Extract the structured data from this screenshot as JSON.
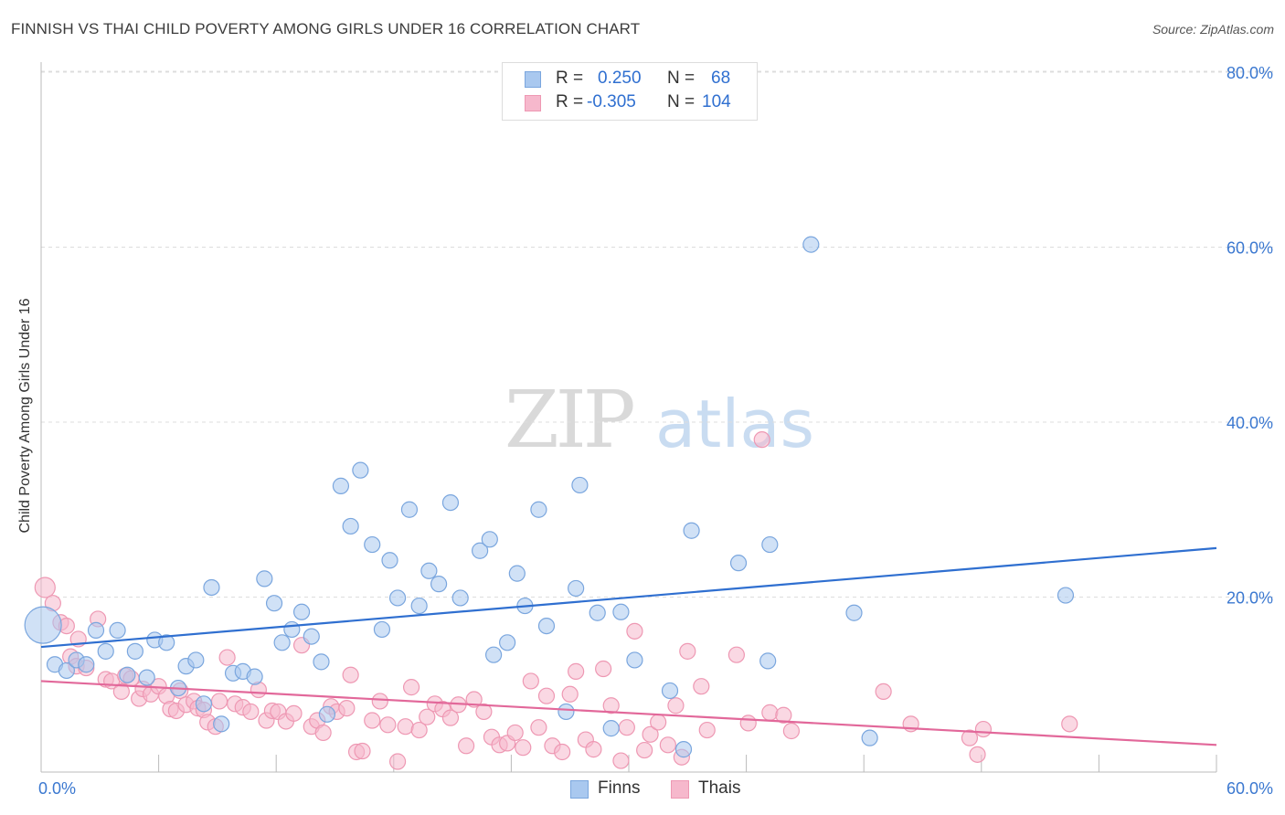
{
  "header": {
    "title": "FINNISH VS THAI CHILD POVERTY AMONG GIRLS UNDER 16 CORRELATION CHART",
    "source": "Source: ZipAtlas.com"
  },
  "legend": {
    "finns": {
      "r_label": "R =",
      "r_value": "0.250",
      "n_label": "N =",
      "n_value": "68"
    },
    "thais": {
      "r_label": "R =",
      "r_value": "-0.305",
      "n_label": "N =",
      "n_value": "104"
    }
  },
  "series_labels": {
    "finns": "Finns",
    "thais": "Thais"
  },
  "watermark": {
    "zip": "ZIP",
    "atlas": "atlas"
  },
  "colors": {
    "finns_fill": "#a9c8ef",
    "finns_stroke": "#7aa6de",
    "finns_line": "#2f6fd0",
    "thais_fill": "#f6b8cc",
    "thais_stroke": "#ee98b3",
    "thais_line": "#e2689a",
    "tick_label": "#3b78d0",
    "grid": "#dddddd"
  },
  "chart_data": {
    "type": "scatter",
    "title": "FINNISH VS THAI CHILD POVERTY AMONG GIRLS UNDER 16 CORRELATION CHART",
    "xlabel": "",
    "ylabel": "Child Poverty Among Girls Under 16",
    "xlim": [
      0,
      60
    ],
    "ylim": [
      0,
      85
    ],
    "x_ticks": [
      {
        "value": 0,
        "label": "0.0%"
      },
      {
        "value": 60,
        "label": "60.0%"
      }
    ],
    "y_ticks": [
      {
        "value": 20,
        "label": "20.0%"
      },
      {
        "value": 40,
        "label": "40.0%"
      },
      {
        "value": 60,
        "label": "60.0%"
      },
      {
        "value": 80,
        "label": "80.0%"
      }
    ],
    "grid": true,
    "legend_position": "top-center",
    "series": [
      {
        "name": "Finns",
        "r": 0.25,
        "n": 68,
        "trend": {
          "x": [
            0,
            60
          ],
          "y": [
            14.3,
            25.6
          ]
        },
        "points": [
          [
            0.1,
            16.8
          ],
          [
            0.7,
            12.3
          ],
          [
            1.3,
            11.6
          ],
          [
            1.8,
            12.8
          ],
          [
            2.3,
            12.3
          ],
          [
            2.8,
            16.2
          ],
          [
            3.3,
            13.8
          ],
          [
            3.9,
            16.2
          ],
          [
            4.4,
            11.1
          ],
          [
            4.8,
            13.8
          ],
          [
            5.4,
            10.8
          ],
          [
            5.8,
            15.1
          ],
          [
            6.4,
            14.8
          ],
          [
            7.0,
            9.6
          ],
          [
            7.4,
            12.1
          ],
          [
            7.9,
            12.8
          ],
          [
            8.3,
            7.8
          ],
          [
            8.7,
            21.1
          ],
          [
            9.2,
            5.5
          ],
          [
            9.8,
            11.3
          ],
          [
            10.3,
            11.5
          ],
          [
            10.9,
            10.9
          ],
          [
            11.4,
            22.1
          ],
          [
            11.9,
            19.3
          ],
          [
            12.3,
            14.8
          ],
          [
            12.8,
            16.3
          ],
          [
            13.3,
            18.3
          ],
          [
            13.8,
            15.5
          ],
          [
            14.3,
            12.6
          ],
          [
            14.6,
            6.6
          ],
          [
            15.3,
            32.7
          ],
          [
            15.8,
            28.1
          ],
          [
            16.3,
            34.5
          ],
          [
            16.9,
            26.0
          ],
          [
            17.4,
            16.3
          ],
          [
            17.8,
            24.2
          ],
          [
            18.2,
            19.9
          ],
          [
            18.8,
            30.0
          ],
          [
            19.3,
            19.0
          ],
          [
            19.8,
            23.0
          ],
          [
            20.3,
            21.5
          ],
          [
            20.9,
            30.8
          ],
          [
            21.4,
            19.9
          ],
          [
            22.4,
            25.3
          ],
          [
            22.9,
            26.6
          ],
          [
            23.1,
            13.4
          ],
          [
            23.8,
            14.8
          ],
          [
            24.3,
            22.7
          ],
          [
            24.7,
            19.0
          ],
          [
            25.4,
            30.0
          ],
          [
            25.8,
            16.7
          ],
          [
            26.8,
            6.9
          ],
          [
            27.3,
            21.0
          ],
          [
            28.4,
            18.2
          ],
          [
            29.1,
            5.0
          ],
          [
            29.6,
            18.3
          ],
          [
            30.3,
            12.8
          ],
          [
            32.1,
            9.3
          ],
          [
            33.2,
            27.6
          ],
          [
            35.6,
            23.9
          ],
          [
            37.1,
            12.7
          ],
          [
            37.2,
            26.0
          ],
          [
            39.3,
            60.3
          ],
          [
            41.5,
            18.2
          ],
          [
            42.3,
            3.9
          ],
          [
            52.3,
            20.2
          ],
          [
            27.5,
            32.8
          ],
          [
            32.8,
            2.6
          ]
        ]
      },
      {
        "name": "Thais",
        "r": -0.305,
        "n": 104,
        "trend": {
          "x": [
            0,
            60
          ],
          "y": [
            10.4,
            3.1
          ]
        },
        "points": [
          [
            0.2,
            21.1
          ],
          [
            0.6,
            19.3
          ],
          [
            1.0,
            17.1
          ],
          [
            1.3,
            16.7
          ],
          [
            1.5,
            13.2
          ],
          [
            1.8,
            12.1
          ],
          [
            1.9,
            15.2
          ],
          [
            2.3,
            11.9
          ],
          [
            2.9,
            17.5
          ],
          [
            3.3,
            10.6
          ],
          [
            3.6,
            10.4
          ],
          [
            4.1,
            9.2
          ],
          [
            4.3,
            11.0
          ],
          [
            4.6,
            10.7
          ],
          [
            5.0,
            8.4
          ],
          [
            5.2,
            9.5
          ],
          [
            5.6,
            8.9
          ],
          [
            6.0,
            9.8
          ],
          [
            6.4,
            8.7
          ],
          [
            6.6,
            7.2
          ],
          [
            6.9,
            7.0
          ],
          [
            7.1,
            9.3
          ],
          [
            7.4,
            7.7
          ],
          [
            7.8,
            8.1
          ],
          [
            8.0,
            7.3
          ],
          [
            8.3,
            7.1
          ],
          [
            8.5,
            5.7
          ],
          [
            8.9,
            5.2
          ],
          [
            9.1,
            8.1
          ],
          [
            9.5,
            13.1
          ],
          [
            9.9,
            7.8
          ],
          [
            10.3,
            7.4
          ],
          [
            10.7,
            6.9
          ],
          [
            11.1,
            9.4
          ],
          [
            11.5,
            5.9
          ],
          [
            11.8,
            7.0
          ],
          [
            12.1,
            6.9
          ],
          [
            12.5,
            5.8
          ],
          [
            12.9,
            6.7
          ],
          [
            13.3,
            14.5
          ],
          [
            13.8,
            5.2
          ],
          [
            14.1,
            5.9
          ],
          [
            14.4,
            4.5
          ],
          [
            14.8,
            7.5
          ],
          [
            15.1,
            6.9
          ],
          [
            15.6,
            7.3
          ],
          [
            15.8,
            11.1
          ],
          [
            16.1,
            2.3
          ],
          [
            16.4,
            2.4
          ],
          [
            16.9,
            5.9
          ],
          [
            17.3,
            8.1
          ],
          [
            17.7,
            5.4
          ],
          [
            18.2,
            1.2
          ],
          [
            18.6,
            5.2
          ],
          [
            18.9,
            9.7
          ],
          [
            19.3,
            4.8
          ],
          [
            19.7,
            6.3
          ],
          [
            20.1,
            7.8
          ],
          [
            20.5,
            7.2
          ],
          [
            20.9,
            6.2
          ],
          [
            21.3,
            7.7
          ],
          [
            21.7,
            3.0
          ],
          [
            22.1,
            8.3
          ],
          [
            22.6,
            6.9
          ],
          [
            23.0,
            4.0
          ],
          [
            23.4,
            3.1
          ],
          [
            23.8,
            3.3
          ],
          [
            24.2,
            4.5
          ],
          [
            24.6,
            2.8
          ],
          [
            25.0,
            10.4
          ],
          [
            25.4,
            5.1
          ],
          [
            25.8,
            8.7
          ],
          [
            26.1,
            3.0
          ],
          [
            26.6,
            2.3
          ],
          [
            27.0,
            8.9
          ],
          [
            27.3,
            11.5
          ],
          [
            27.8,
            3.7
          ],
          [
            28.2,
            2.6
          ],
          [
            28.7,
            11.8
          ],
          [
            29.1,
            7.6
          ],
          [
            29.6,
            1.3
          ],
          [
            29.9,
            5.1
          ],
          [
            30.3,
            16.1
          ],
          [
            30.8,
            2.5
          ],
          [
            31.1,
            4.3
          ],
          [
            31.5,
            5.7
          ],
          [
            32.0,
            3.1
          ],
          [
            32.4,
            7.6
          ],
          [
            32.7,
            1.7
          ],
          [
            33.0,
            13.8
          ],
          [
            33.7,
            9.8
          ],
          [
            34.0,
            4.8
          ],
          [
            35.5,
            13.4
          ],
          [
            36.1,
            5.6
          ],
          [
            36.8,
            38.0
          ],
          [
            37.2,
            6.8
          ],
          [
            37.9,
            6.5
          ],
          [
            38.3,
            4.7
          ],
          [
            43.0,
            9.2
          ],
          [
            44.4,
            5.5
          ],
          [
            47.4,
            3.9
          ],
          [
            47.8,
            2.0
          ],
          [
            48.1,
            4.9
          ],
          [
            52.5,
            5.5
          ]
        ]
      }
    ]
  }
}
